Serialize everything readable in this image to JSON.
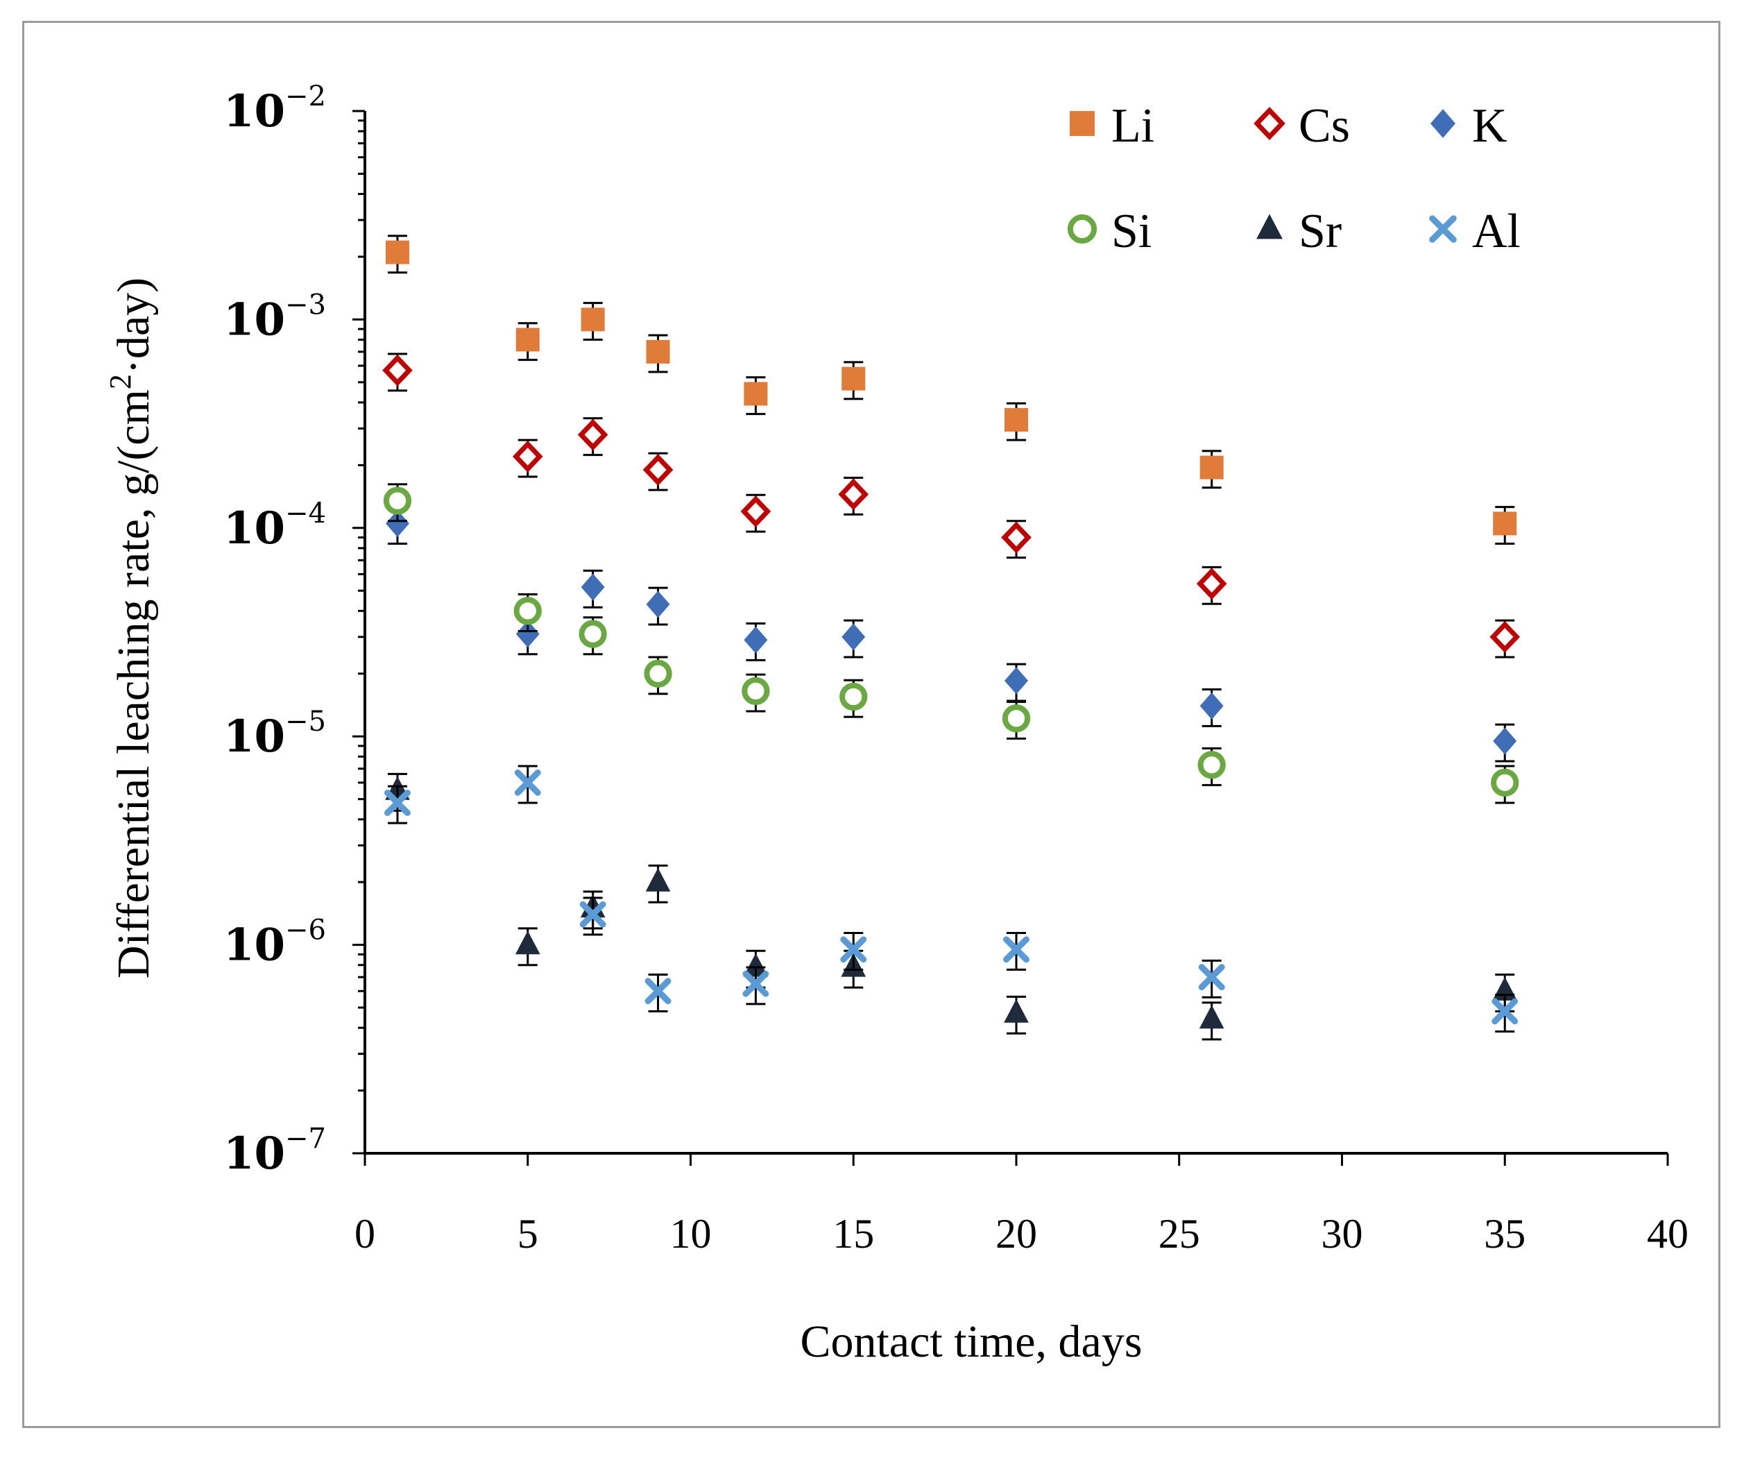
{
  "chart_data": {
    "type": "scatter",
    "title": "",
    "xlabel": "Contact time, days",
    "ylabel_main": "Differential leaching rate, g/(cm",
    "ylabel_sup": "2",
    "ylabel_tail": "·day)",
    "xlim": [
      0,
      40
    ],
    "ylim": [
      1e-07,
      0.01
    ],
    "yscale": "log",
    "x_ticks": [
      "0",
      "5",
      "10",
      "15",
      "20",
      "25",
      "30",
      "35",
      "40"
    ],
    "y_ticks": [
      {
        "base": "10",
        "exp": "−2",
        "value": 0.01
      },
      {
        "base": "10",
        "exp": "−3",
        "value": 0.001
      },
      {
        "base": "10",
        "exp": "−4",
        "value": 0.0001
      },
      {
        "base": "10",
        "exp": "−5",
        "value": 1e-05
      },
      {
        "base": "10",
        "exp": "−6",
        "value": 1e-06
      },
      {
        "base": "10",
        "exp": "−7",
        "value": 1e-07
      }
    ],
    "legend_position": "top-right",
    "error_fraction": 0.2,
    "x": [
      1,
      5,
      7,
      9,
      12,
      15,
      20,
      26,
      35
    ],
    "series": [
      {
        "name": "Li",
        "marker": "square",
        "color": "#e07b39",
        "values": [
          0.0021,
          0.0008,
          0.001,
          0.0007,
          0.00044,
          0.00052,
          0.00033,
          0.000195,
          0.000105
        ]
      },
      {
        "name": "Cs",
        "marker": "diamond-open",
        "color": "#c00000",
        "values": [
          0.00057,
          0.00022,
          0.00028,
          0.00019,
          0.00012,
          0.000145,
          9e-05,
          5.4e-05,
          3e-05
        ]
      },
      {
        "name": "K",
        "marker": "diamond",
        "color": "#3f6db6",
        "values": [
          0.000105,
          3.1e-05,
          5.2e-05,
          4.3e-05,
          2.9e-05,
          3e-05,
          1.85e-05,
          1.4e-05,
          9.5e-06
        ]
      },
      {
        "name": "Si",
        "marker": "circle-open",
        "color": "#6aa842",
        "values": [
          0.000135,
          4e-05,
          3.1e-05,
          2e-05,
          1.65e-05,
          1.55e-05,
          1.22e-05,
          7.3e-06,
          6e-06
        ]
      },
      {
        "name": "Sr",
        "marker": "triangle",
        "color": "#1f2a3a",
        "values": [
          5.5e-06,
          1e-06,
          1.5e-06,
          2e-06,
          7.8e-07,
          7.8e-07,
          4.7e-07,
          4.4e-07,
          6e-07
        ]
      },
      {
        "name": "Al",
        "marker": "x",
        "color": "#5b9bd5",
        "values": [
          4.8e-06,
          6e-06,
          1.4e-06,
          6e-07,
          6.5e-07,
          9.5e-07,
          9.5e-07,
          7e-07,
          4.8e-07
        ]
      }
    ]
  }
}
